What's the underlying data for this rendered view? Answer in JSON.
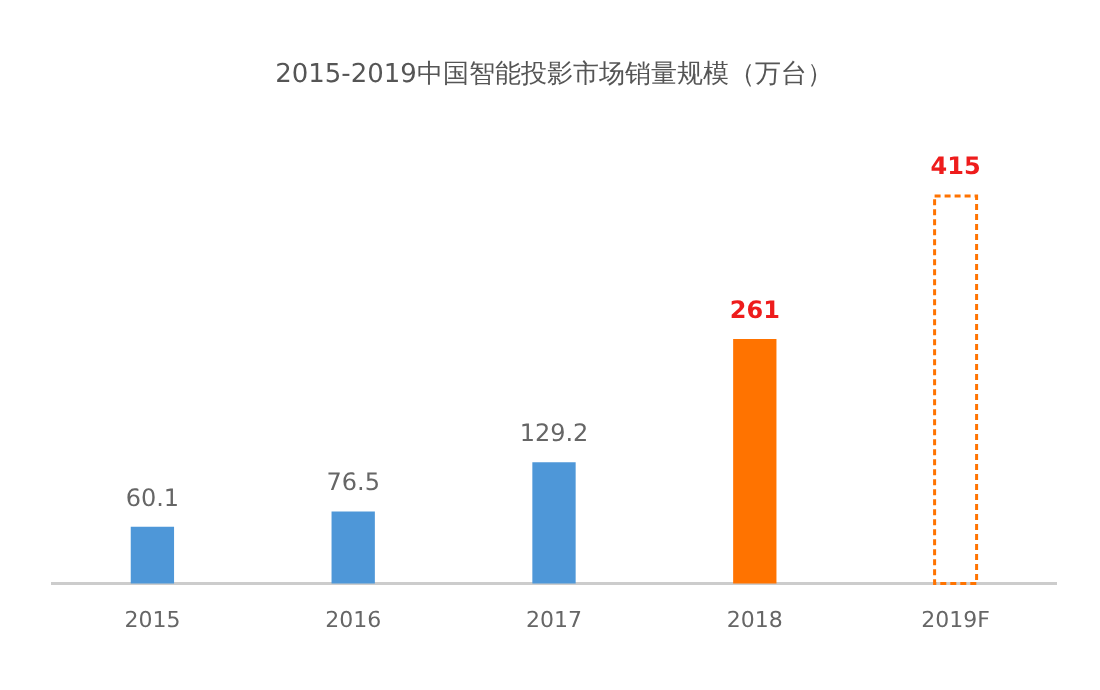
{
  "chart_data": {
    "type": "bar",
    "title": "2015-2019中国智能投影市场销量规模（万台）",
    "categories": [
      "2015",
      "2016",
      "2017",
      "2018",
      "2019F"
    ],
    "stacked": true,
    "series": [
      {
        "colors": [
          "#4e97d8",
          "#4e97d8",
          "#4e97d8",
          "#ff7300",
          null
        ],
        "values": [
          60.1,
          76.5,
          129.2,
          261,
          null
        ]
      },
      {
        "color": "#ff7300",
        "line_style": "dashed",
        "values": [
          null,
          null,
          null,
          null,
          415
        ]
      }
    ],
    "data_labels": true,
    "grid": false,
    "legend": false
  }
}
